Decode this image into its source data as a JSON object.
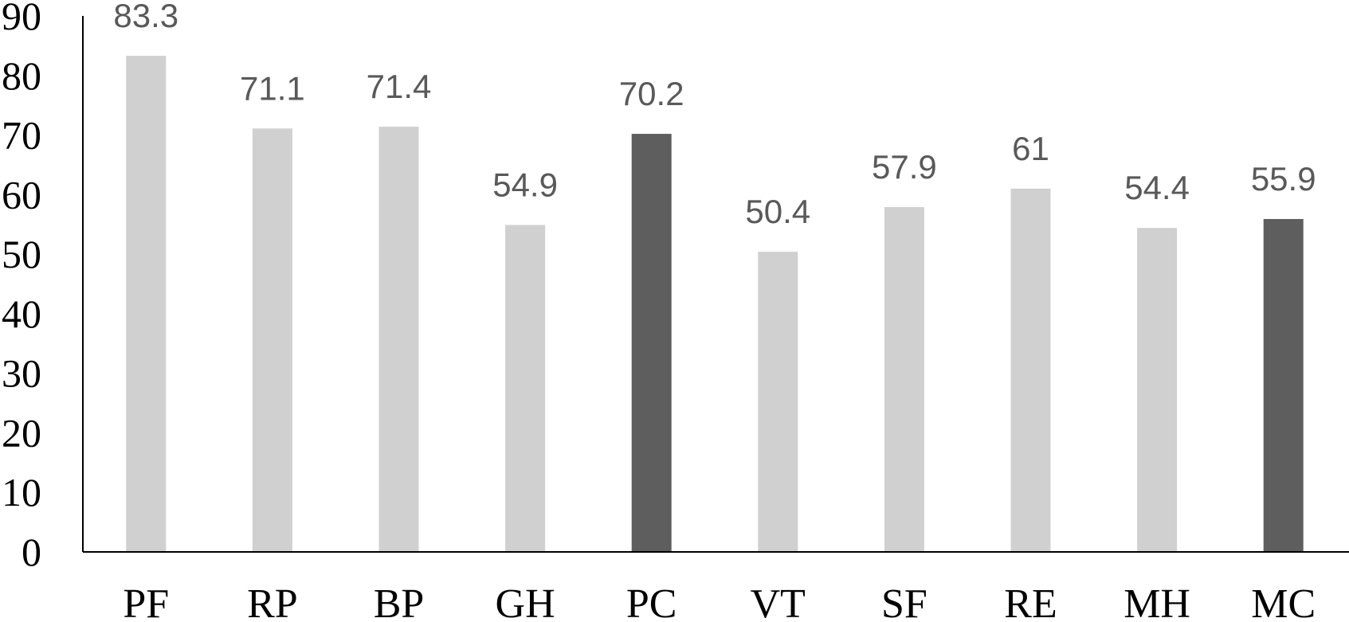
{
  "chart_data": {
    "type": "bar",
    "title": "",
    "xlabel": "",
    "ylabel": "",
    "ylim": [
      0,
      90
    ],
    "yticks": [
      0,
      10,
      20,
      30,
      40,
      50,
      60,
      70,
      80,
      90
    ],
    "grid": false,
    "legend": "none",
    "categories": [
      "PF",
      "RP",
      "BP",
      "GH",
      "PC",
      "VT",
      "SF",
      "RE",
      "MH",
      "MC"
    ],
    "values": [
      83.3,
      71.1,
      71.4,
      54.9,
      70.2,
      50.4,
      57.9,
      61,
      54.4,
      55.9
    ],
    "value_labels": [
      "83.3",
      "71.1",
      "71.4",
      "54.9",
      "70.2",
      "50.4",
      "57.9",
      "61",
      "54.4",
      "55.9"
    ],
    "bar_colors": [
      "#d0d0d0",
      "#d0d0d0",
      "#d0d0d0",
      "#d0d0d0",
      "#5e5e5e",
      "#d0d0d0",
      "#d0d0d0",
      "#d0d0d0",
      "#d0d0d0",
      "#5e5e5e"
    ]
  }
}
